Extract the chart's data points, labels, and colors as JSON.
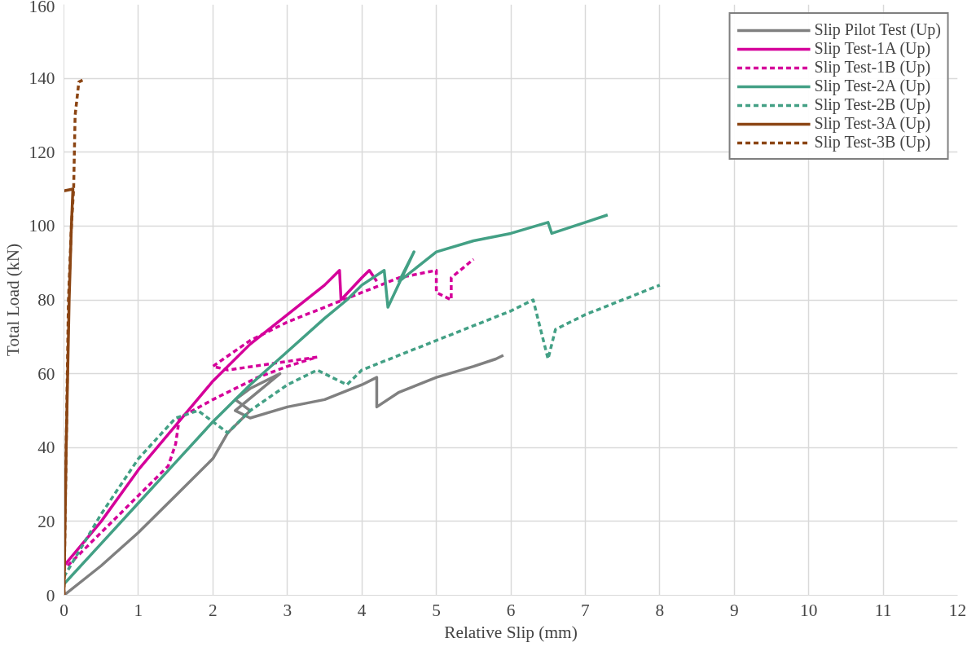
{
  "chart_data": {
    "type": "line",
    "xlabel": "Relative Slip (mm)",
    "ylabel": "Total Load (kN)",
    "xlim": [
      0,
      12
    ],
    "ylim": [
      0,
      160
    ],
    "xticks": [
      0,
      1,
      2,
      3,
      4,
      5,
      6,
      7,
      8,
      9,
      10,
      11,
      12
    ],
    "yticks": [
      0,
      20,
      40,
      60,
      80,
      100,
      120,
      140,
      160
    ],
    "grid": true,
    "legend": "top right",
    "series": [
      {
        "name": "Slip Pilot Test (Up)",
        "color": "#808080",
        "line_style": "solid",
        "x": [
          0,
          0.5,
          1,
          1.5,
          2,
          2.2,
          2.5,
          2.3,
          2.5,
          2.9,
          2.3,
          2.5,
          3,
          3.5,
          4,
          4.2,
          4.2,
          4.5,
          5,
          5.5,
          5.8,
          5.9
        ],
        "values": [
          0,
          8,
          17,
          27,
          37,
          44,
          50,
          53,
          56,
          60,
          50,
          48,
          51,
          53,
          57,
          59,
          51,
          55,
          59,
          62,
          64,
          65
        ]
      },
      {
        "name": "Slip Test-1A (Up)",
        "color": "#d5009a",
        "line_style": "solid",
        "x": [
          0,
          0.5,
          1,
          1.5,
          2,
          2.5,
          3,
          3.5,
          3.7,
          3.72,
          4,
          4.1,
          4.2
        ],
        "values": [
          8,
          20,
          34,
          46,
          58,
          68,
          76,
          84,
          88,
          80,
          86,
          88,
          85
        ]
      },
      {
        "name": "Slip Test-1B (Up)",
        "color": "#d5009a",
        "line_style": "dashed",
        "x": [
          0.05,
          0.5,
          1,
          1.4,
          1.5,
          1.55,
          2,
          2.6,
          3,
          3.4,
          2.2,
          2,
          2.5,
          3,
          3.5,
          4,
          4.5,
          5,
          5,
          5.2,
          5.2,
          5.5
        ],
        "values": [
          8,
          17,
          27,
          35,
          41,
          48,
          53,
          59,
          62,
          64.5,
          61,
          62,
          69,
          74,
          78,
          82,
          86,
          88,
          82,
          80,
          86,
          91
        ]
      },
      {
        "name": "Slip Test-2A (Up)",
        "color": "#43a085",
        "line_style": "solid",
        "x": [
          0,
          0.5,
          1,
          1.5,
          2,
          2.5,
          3,
          3.5,
          3.8,
          4,
          4.3,
          4.35,
          4.7,
          4.5,
          5,
          5.5,
          6,
          6.5,
          6.55,
          7,
          7.3
        ],
        "values": [
          3,
          14,
          25,
          36,
          47,
          57,
          66,
          75,
          80,
          84,
          88,
          78,
          93,
          85,
          93,
          96,
          98,
          101,
          98,
          101,
          103
        ]
      },
      {
        "name": "Slip Test-2B (Up)",
        "color": "#43a085",
        "line_style": "dashed",
        "x": [
          0,
          0.5,
          1,
          1.5,
          1.8,
          2.2,
          2.5,
          3,
          3.4,
          3.8,
          4,
          4.5,
          5,
          5.5,
          6,
          6.3,
          6.5,
          6.6,
          7,
          7.5,
          8
        ],
        "values": [
          5,
          22,
          37,
          48,
          50,
          44,
          50,
          57,
          61,
          57,
          61,
          65,
          69,
          73,
          77,
          80,
          64,
          72,
          76,
          80,
          84
        ]
      },
      {
        "name": "Slip Test-3A (Up)",
        "color": "#8b4513",
        "line_style": "solid",
        "x": [
          0,
          0.03,
          0.07,
          0.1,
          0.12,
          0
        ],
        "values": [
          0,
          40,
          80,
          100,
          110,
          109.5
        ]
      },
      {
        "name": "Slip Test-3B (Up)",
        "color": "#8b4513",
        "line_style": "dashed",
        "x": [
          0,
          0.03,
          0.06,
          0.1,
          0.13,
          0.15,
          0.2,
          0.25
        ],
        "values": [
          0,
          40,
          80,
          100,
          110,
          130,
          139,
          139.5
        ]
      }
    ]
  }
}
